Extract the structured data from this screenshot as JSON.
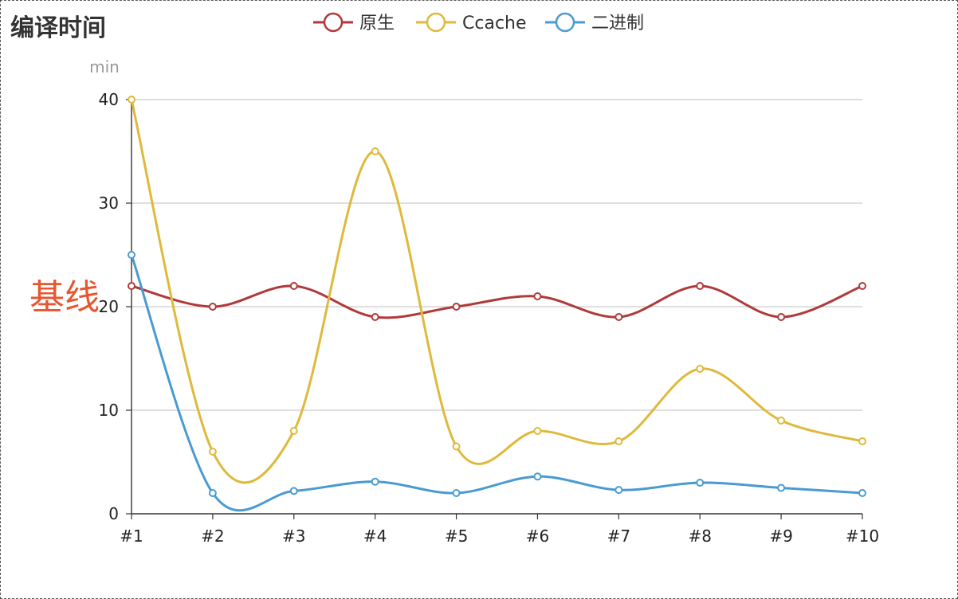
{
  "chart_data": {
    "type": "line",
    "title": "编译时间",
    "ylabel": "min",
    "xlabel": "",
    "ylim": [
      0,
      40
    ],
    "yticks": [
      0,
      10,
      20,
      30,
      40
    ],
    "grid": true,
    "smooth": true,
    "legend_position": "top-center",
    "categories": [
      "#1",
      "#2",
      "#3",
      "#4",
      "#5",
      "#6",
      "#7",
      "#8",
      "#9",
      "#10"
    ],
    "series": [
      {
        "name": "原生",
        "color": "#b03a3a",
        "values": [
          22,
          20,
          22,
          19,
          20,
          21,
          19,
          22,
          19,
          22
        ]
      },
      {
        "name": "Ccache",
        "color": "#dfb93b",
        "values": [
          40,
          6,
          8,
          35,
          6.5,
          8,
          7,
          14,
          9,
          7
        ]
      },
      {
        "name": "二进制",
        "color": "#4a9bd1",
        "values": [
          25,
          2,
          2.2,
          3.1,
          2,
          3.6,
          2.3,
          3,
          2.5,
          2
        ]
      }
    ],
    "annotation": {
      "text": "基线",
      "y": 21,
      "color": "#e8552f"
    }
  }
}
